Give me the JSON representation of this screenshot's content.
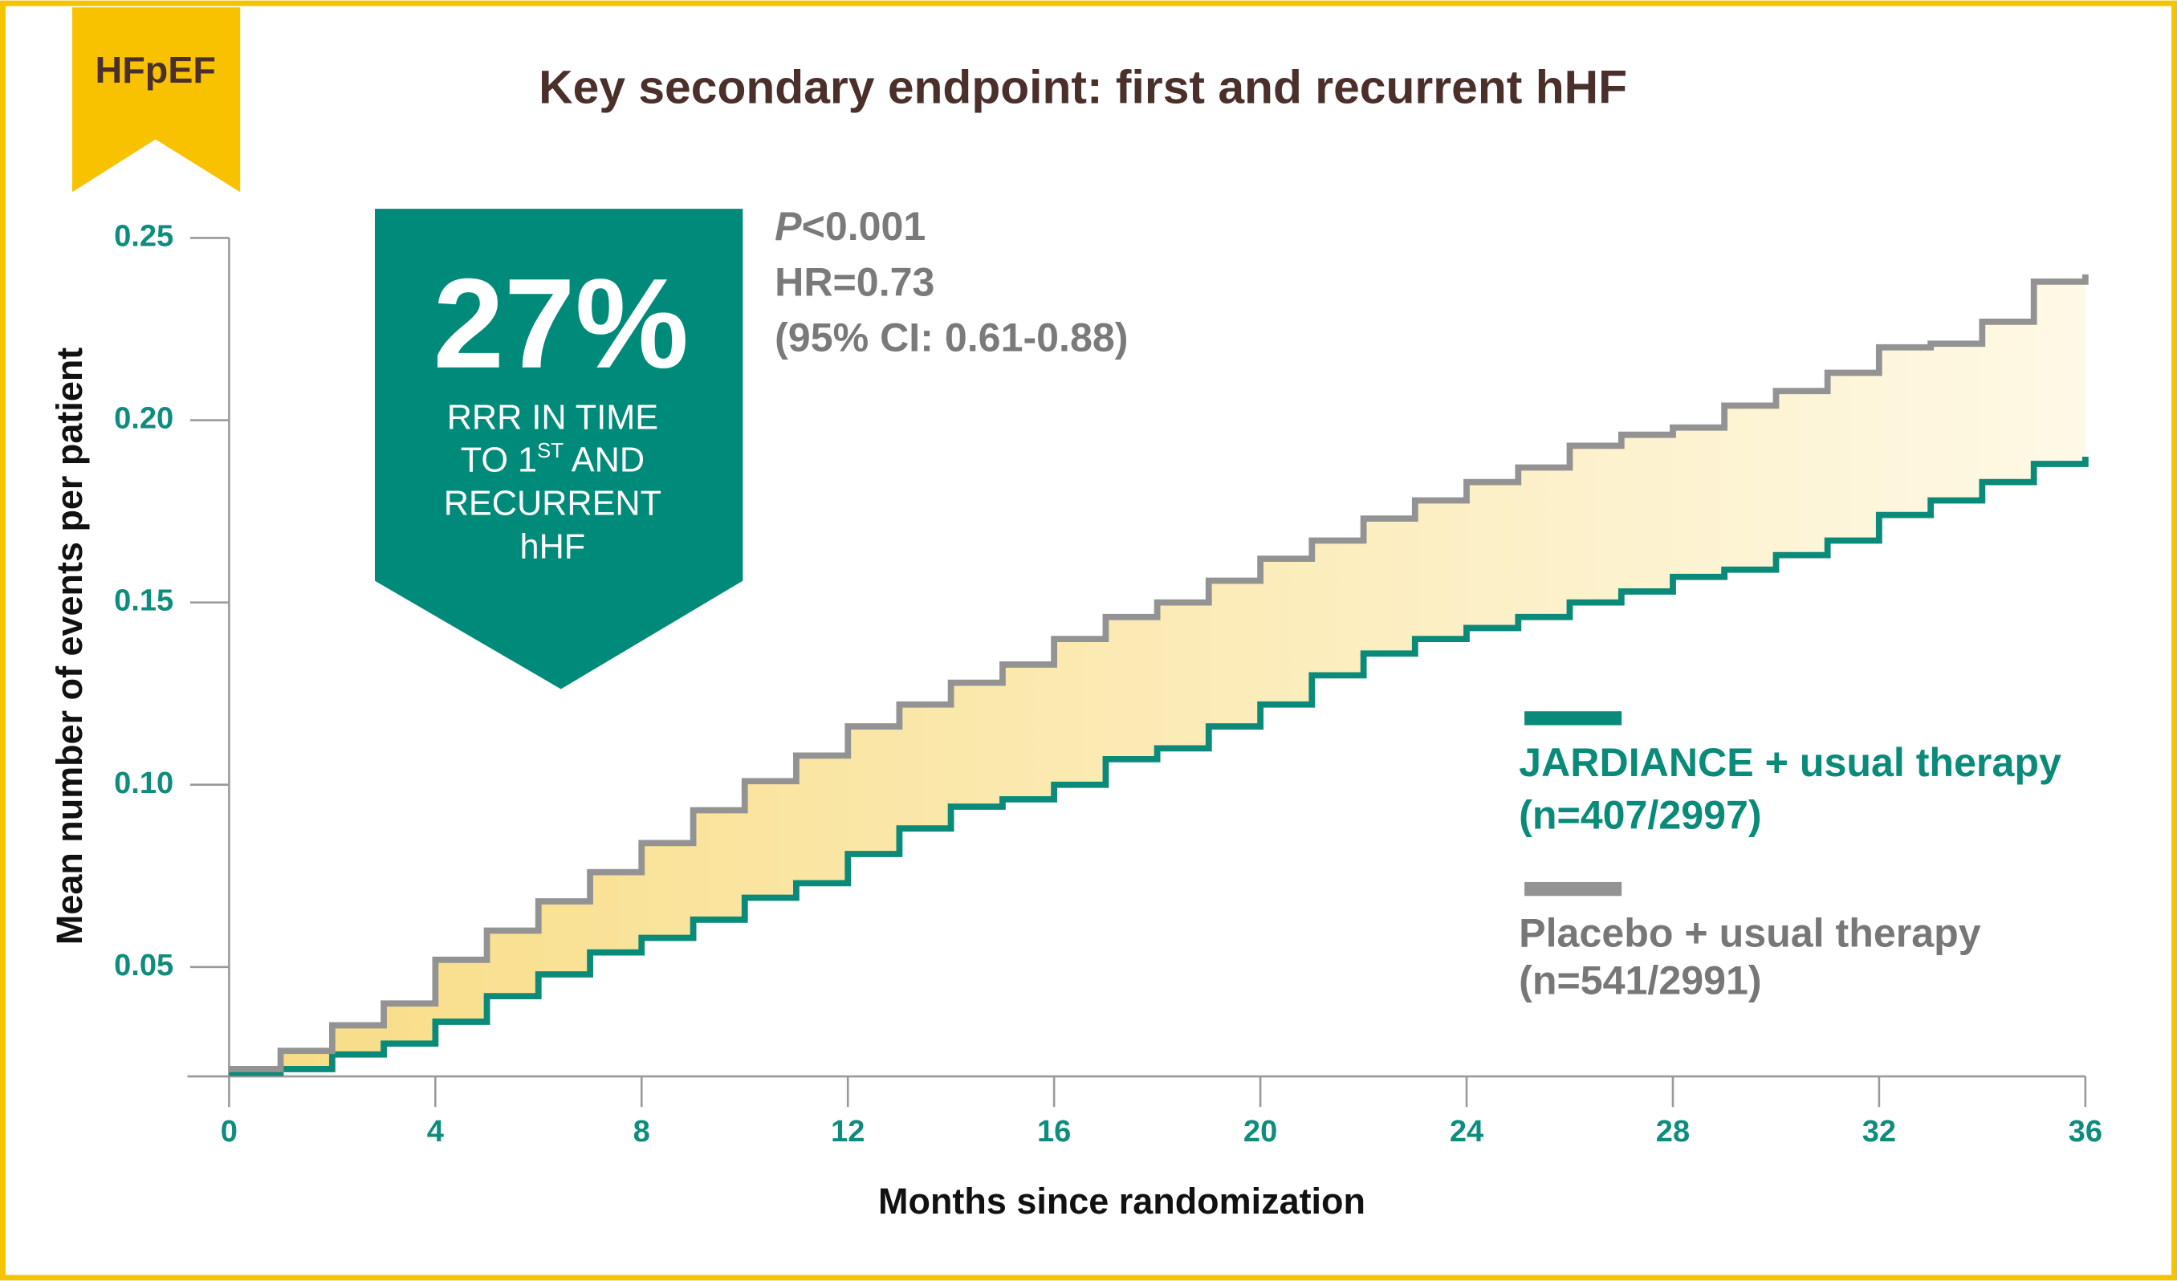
{
  "badge": "HFpEF",
  "chart_data": {
    "type": "line",
    "title": "Key secondary endpoint: first and recurrent hHF",
    "x_label": "Months since randomization",
    "y_label": "Mean number of events per patient",
    "x": [
      0,
      1,
      2,
      3,
      4,
      5,
      6,
      7,
      8,
      9,
      10,
      11,
      12,
      13,
      14,
      15,
      16,
      17,
      18,
      19,
      20,
      21,
      22,
      23,
      24,
      25,
      26,
      27,
      28,
      29,
      30,
      31,
      32,
      33,
      34,
      35,
      36
    ],
    "series": [
      {
        "name": "JARDIANCE + usual therapy",
        "count_label": "(n=407/2997)",
        "color": "#0a8a78",
        "values": [
          0.021,
          0.022,
          0.026,
          0.029,
          0.035,
          0.042,
          0.048,
          0.054,
          0.058,
          0.063,
          0.069,
          0.073,
          0.081,
          0.088,
          0.094,
          0.096,
          0.1,
          0.107,
          0.11,
          0.116,
          0.122,
          0.13,
          0.136,
          0.14,
          0.143,
          0.146,
          0.15,
          0.153,
          0.157,
          0.159,
          0.163,
          0.167,
          0.174,
          0.178,
          0.183,
          0.188,
          0.19
        ]
      },
      {
        "name": "Placebo + usual therapy",
        "count_label": "(n=541/2991)",
        "color": "#939393",
        "values": [
          0.022,
          0.027,
          0.034,
          0.04,
          0.052,
          0.06,
          0.068,
          0.076,
          0.084,
          0.093,
          0.101,
          0.108,
          0.116,
          0.122,
          0.128,
          0.133,
          0.14,
          0.146,
          0.15,
          0.156,
          0.162,
          0.167,
          0.173,
          0.178,
          0.183,
          0.187,
          0.193,
          0.196,
          0.198,
          0.204,
          0.208,
          0.213,
          0.22,
          0.221,
          0.227,
          0.238,
          0.24
        ]
      }
    ],
    "xlim": [
      0,
      36
    ],
    "xticks": [
      0,
      4,
      8,
      12,
      16,
      20,
      24,
      28,
      32,
      36
    ],
    "ylim": [
      0.02,
      0.25
    ],
    "yticks": [
      0.05,
      {
        "value": 0.1,
        "label": "0.10"
      },
      0.15,
      {
        "value": 0.2,
        "label": "0.20"
      },
      0.25
    ],
    "step": true,
    "fill_between": true
  },
  "callout": {
    "headline": "27%",
    "line1": "RRR IN TIME",
    "line2_pre": "TO 1",
    "line2_sup": "ST",
    "line2_post": " AND",
    "line3": "RECURRENT",
    "line4": "hHF"
  },
  "stats": {
    "p_symbol": "P",
    "p_value": "<0.001",
    "hr": "HR=0.73",
    "ci": "(95% CI: 0.61-0.88)"
  }
}
